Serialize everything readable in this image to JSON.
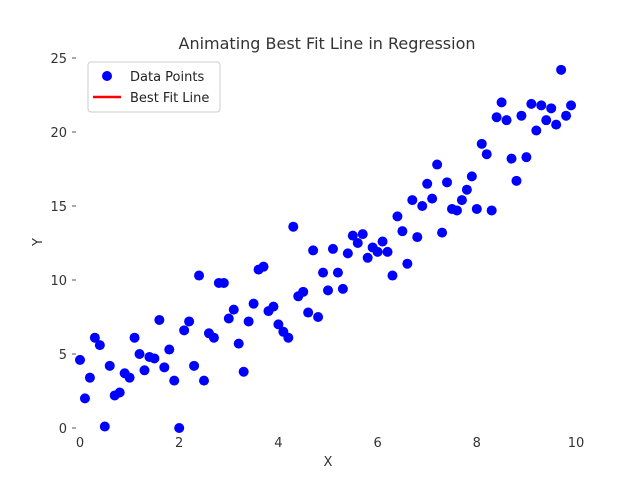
{
  "chart_data": {
    "type": "scatter",
    "title": "Animating Best Fit Line in Regression",
    "xlabel": "X",
    "ylabel": "Y",
    "xlim": [
      0,
      10
    ],
    "ylim": [
      0,
      25
    ],
    "xticks": [
      "0",
      "2",
      "4",
      "6",
      "8",
      "10"
    ],
    "yticks": [
      "0",
      "5",
      "10",
      "15",
      "20",
      "25"
    ],
    "grid": false,
    "legend_position": "top-left",
    "legend": [
      {
        "label": "Data Points",
        "kind": "marker",
        "color": "#0000ff"
      },
      {
        "label": "Best Fit Line",
        "kind": "line",
        "color": "#ff0000"
      }
    ],
    "series": [
      {
        "name": "Data Points",
        "color": "#0000ff",
        "points": [
          [
            0.0,
            4.6
          ],
          [
            0.1,
            2.0
          ],
          [
            0.2,
            3.4
          ],
          [
            0.3,
            6.1
          ],
          [
            0.4,
            5.6
          ],
          [
            0.5,
            0.1
          ],
          [
            0.6,
            4.2
          ],
          [
            0.7,
            2.2
          ],
          [
            0.8,
            2.4
          ],
          [
            0.9,
            3.7
          ],
          [
            1.0,
            3.4
          ],
          [
            1.1,
            6.1
          ],
          [
            1.2,
            5.0
          ],
          [
            1.3,
            3.9
          ],
          [
            1.4,
            4.8
          ],
          [
            1.5,
            4.7
          ],
          [
            1.6,
            7.3
          ],
          [
            1.7,
            4.1
          ],
          [
            1.8,
            5.3
          ],
          [
            1.9,
            3.2
          ],
          [
            2.0,
            0.0
          ],
          [
            2.1,
            6.6
          ],
          [
            2.2,
            7.2
          ],
          [
            2.3,
            4.2
          ],
          [
            2.4,
            10.3
          ],
          [
            2.5,
            3.2
          ],
          [
            2.6,
            6.4
          ],
          [
            2.7,
            6.1
          ],
          [
            2.8,
            9.8
          ],
          [
            2.9,
            9.8
          ],
          [
            3.0,
            7.4
          ],
          [
            3.1,
            8.0
          ],
          [
            3.2,
            5.7
          ],
          [
            3.3,
            3.8
          ],
          [
            3.4,
            7.2
          ],
          [
            3.5,
            8.4
          ],
          [
            3.6,
            10.7
          ],
          [
            3.7,
            10.9
          ],
          [
            3.8,
            7.9
          ],
          [
            3.9,
            8.2
          ],
          [
            4.0,
            7.0
          ],
          [
            4.1,
            6.5
          ],
          [
            4.2,
            6.1
          ],
          [
            4.3,
            13.6
          ],
          [
            4.4,
            8.9
          ],
          [
            4.5,
            9.2
          ],
          [
            4.6,
            7.8
          ],
          [
            4.7,
            12.0
          ],
          [
            4.8,
            7.5
          ],
          [
            4.9,
            10.5
          ],
          [
            5.0,
            9.3
          ],
          [
            5.1,
            12.1
          ],
          [
            5.2,
            10.5
          ],
          [
            5.3,
            9.4
          ],
          [
            5.4,
            11.8
          ],
          [
            5.5,
            13.0
          ],
          [
            5.6,
            12.5
          ],
          [
            5.7,
            13.1
          ],
          [
            5.8,
            11.5
          ],
          [
            5.9,
            12.2
          ],
          [
            6.0,
            11.9
          ],
          [
            6.1,
            12.6
          ],
          [
            6.2,
            11.9
          ],
          [
            6.3,
            10.3
          ],
          [
            6.4,
            14.3
          ],
          [
            6.5,
            13.3
          ],
          [
            6.6,
            11.1
          ],
          [
            6.7,
            15.4
          ],
          [
            6.8,
            12.9
          ],
          [
            6.9,
            15.0
          ],
          [
            7.0,
            16.5
          ],
          [
            7.1,
            15.5
          ],
          [
            7.2,
            17.8
          ],
          [
            7.3,
            13.2
          ],
          [
            7.4,
            16.6
          ],
          [
            7.5,
            14.8
          ],
          [
            7.6,
            14.7
          ],
          [
            7.7,
            15.4
          ],
          [
            7.8,
            16.1
          ],
          [
            7.9,
            17.0
          ],
          [
            8.0,
            14.8
          ],
          [
            8.1,
            19.2
          ],
          [
            8.2,
            18.5
          ],
          [
            8.3,
            14.7
          ],
          [
            8.4,
            21.0
          ],
          [
            8.5,
            22.0
          ],
          [
            8.6,
            20.8
          ],
          [
            8.7,
            18.2
          ],
          [
            8.8,
            16.7
          ],
          [
            8.9,
            21.1
          ],
          [
            9.0,
            18.3
          ],
          [
            9.1,
            21.9
          ],
          [
            9.2,
            20.1
          ],
          [
            9.3,
            21.8
          ],
          [
            9.4,
            20.8
          ],
          [
            9.5,
            21.6
          ],
          [
            9.6,
            20.5
          ],
          [
            9.7,
            24.2
          ],
          [
            9.8,
            21.1
          ],
          [
            9.9,
            21.8
          ]
        ]
      }
    ]
  }
}
